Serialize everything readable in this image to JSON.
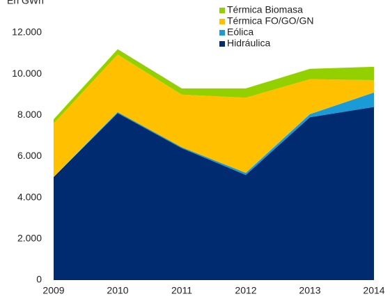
{
  "chart_data": {
    "type": "stacked_area",
    "y_axis_label": "En GWh",
    "x": [
      2009,
      2010,
      2011,
      2012,
      2013,
      2014
    ],
    "xlim": [
      2009,
      2014
    ],
    "xticks": [
      2009,
      2010,
      2011,
      2012,
      2013,
      2014
    ],
    "series": [
      {
        "name": "Hidráulica",
        "color": "#002b71",
        "values": [
          5000,
          8100,
          6400,
          5100,
          7900,
          8400
        ]
      },
      {
        "name": "Eólica",
        "color": "#1a9ad6",
        "values": [
          0,
          50,
          50,
          100,
          150,
          700
        ]
      },
      {
        "name": "Térmica FO/GO/GN",
        "color": "#ffc000",
        "values": [
          2600,
          2800,
          2550,
          3650,
          1700,
          600
        ]
      },
      {
        "name": "Térmica Biomasa",
        "color": "#92d000",
        "values": [
          200,
          250,
          300,
          450,
          500,
          650
        ]
      }
    ],
    "ylim": [
      0,
      12000
    ],
    "yticks": [
      0,
      {
        "value": 2000,
        "label": "2.000"
      },
      {
        "value": 4000,
        "label": "4.000"
      },
      {
        "value": 6000,
        "label": "6.000"
      },
      {
        "value": 8000,
        "label": "8.000"
      },
      {
        "value": 10000,
        "label": "10.000"
      },
      {
        "value": 12000,
        "label": "12.000"
      }
    ],
    "grid": false,
    "legend_position": "top-right"
  }
}
